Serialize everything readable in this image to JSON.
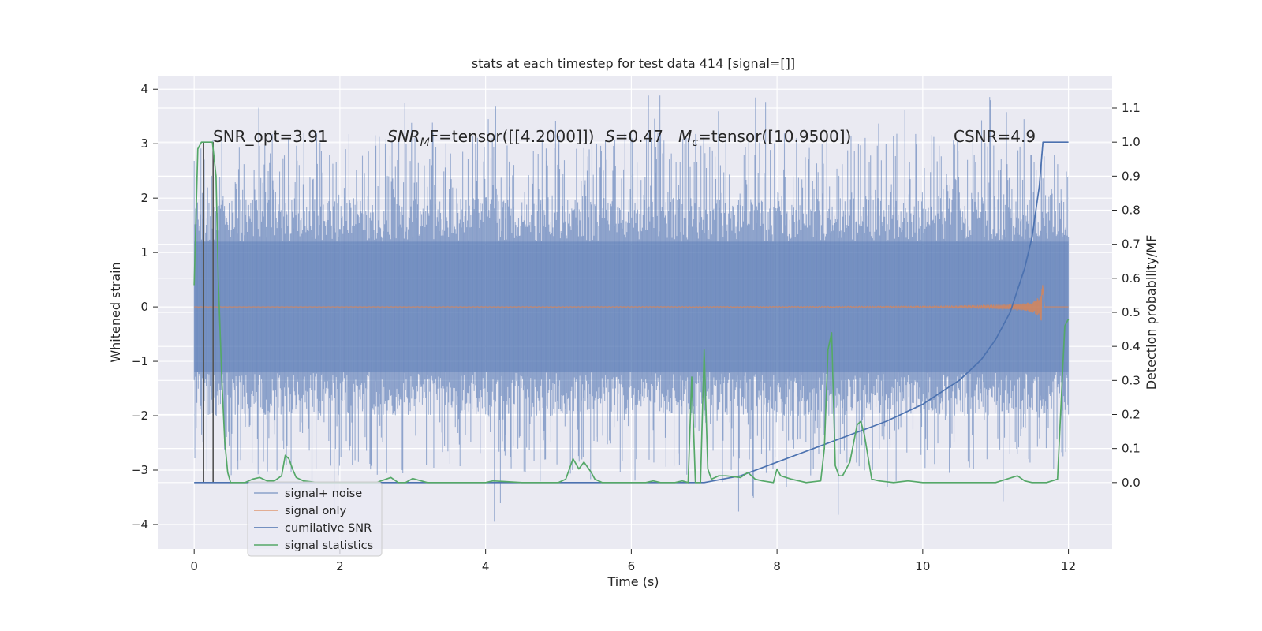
{
  "colors": {
    "axes_bg": "#eaeaf2",
    "grid": "#ffffff",
    "noise": "#4c72b0",
    "signal": "#dd8452",
    "csnr": "#4c72b0",
    "stats": "#55a868",
    "marker": "#555555"
  },
  "chart_data": {
    "type": "line",
    "title": "stats at each timestep for test data 414 [signal=[]]",
    "xlabel": "Time (s)",
    "ylabel": "Whitened strain",
    "ylabel_right": "Detection probability/MF",
    "xlim": [
      -0.5,
      12.6
    ],
    "ylim": [
      -4.45,
      4.25
    ],
    "ylim_right": [
      -0.195,
      1.195
    ],
    "x_ticks": [
      0,
      2,
      4,
      6,
      8,
      10,
      12
    ],
    "y_ticks": [
      -4,
      -3,
      -2,
      -1,
      0,
      1,
      2,
      3,
      4
    ],
    "y_ticks_right": [
      0.0,
      0.1,
      0.2,
      0.3,
      0.4,
      0.5,
      0.6,
      0.7,
      0.8,
      0.9,
      1.0,
      1.1
    ],
    "grid": true,
    "legend_position": "lower-left",
    "annotations": {
      "snr_opt": "SNR_opt=3.91",
      "snr_mf_symbol": "SNR",
      "snr_mf_sub": "M",
      "snr_mf_value": "F=tensor([[4.2000]])",
      "s_symbol": "S",
      "s_value": "=0.47",
      "mc_symbol": "M",
      "mc_sub": "c",
      "mc_value": "=tensor([10.9500])",
      "csnr": "CSNR=4.9"
    },
    "marker_lines_x": [
      0.13,
      0.26
    ],
    "series": [
      {
        "name": "signal+ noise",
        "axis": "left",
        "style": "whitened noise band, t=0 to 12 s",
        "t_start": 0,
        "t_end": 12,
        "band_core": 1.2,
        "spike_range": [
          -4.1,
          3.9
        ]
      },
      {
        "name": "signal only",
        "axis": "left",
        "style": "chirp, growing amplitude until merger",
        "t_start": 0,
        "t_merger": 11.65,
        "peak_amplitude": 0.47
      },
      {
        "name": "cumilative SNR",
        "axis": "right",
        "x": [
          0,
          7.0,
          7.5,
          8.0,
          8.5,
          9.0,
          9.5,
          10.0,
          10.5,
          10.8,
          11.0,
          11.2,
          11.4,
          11.5,
          11.6,
          11.65,
          12.0
        ],
        "y": [
          0.0,
          0.0,
          0.02,
          0.06,
          0.1,
          0.14,
          0.18,
          0.23,
          0.3,
          0.36,
          0.42,
          0.5,
          0.63,
          0.72,
          0.87,
          1.0,
          1.0
        ]
      },
      {
        "name": "signal statistics",
        "axis": "right",
        "x": [
          0.0,
          0.05,
          0.1,
          0.15,
          0.2,
          0.25,
          0.3,
          0.33,
          0.38,
          0.42,
          0.46,
          0.5,
          0.6,
          0.7,
          0.8,
          0.9,
          1.0,
          1.1,
          1.2,
          1.25,
          1.3,
          1.35,
          1.4,
          1.5,
          1.7,
          2.0,
          2.5,
          2.7,
          2.8,
          2.9,
          3.0,
          3.2,
          3.5,
          4.0,
          4.1,
          4.5,
          5.0,
          5.1,
          5.2,
          5.28,
          5.35,
          5.4,
          5.45,
          5.5,
          5.6,
          5.8,
          6.0,
          6.2,
          6.3,
          6.4,
          6.5,
          6.6,
          6.7,
          6.78,
          6.83,
          6.88,
          6.95,
          7.0,
          7.05,
          7.1,
          7.2,
          7.3,
          7.5,
          7.6,
          7.7,
          7.8,
          7.95,
          8.0,
          8.05,
          8.2,
          8.4,
          8.6,
          8.65,
          8.7,
          8.75,
          8.8,
          8.85,
          8.9,
          9.0,
          9.1,
          9.15,
          9.2,
          9.3,
          9.4,
          9.6,
          9.8,
          10.0,
          10.5,
          11.0,
          11.3,
          11.4,
          11.5,
          11.7,
          11.85,
          11.95,
          12.0
        ],
        "y": [
          0.58,
          0.98,
          1.0,
          1.0,
          1.0,
          1.0,
          0.9,
          0.6,
          0.3,
          0.12,
          0.03,
          0.0,
          0.0,
          0.0,
          0.01,
          0.015,
          0.005,
          0.005,
          0.02,
          0.08,
          0.07,
          0.04,
          0.015,
          0.005,
          0.0,
          0.0,
          0.0,
          0.015,
          0.0,
          0.0,
          0.012,
          0.0,
          0.0,
          0.0,
          0.005,
          0.0,
          0.0,
          0.01,
          0.07,
          0.04,
          0.06,
          0.045,
          0.03,
          0.01,
          0.0,
          0.0,
          0.0,
          0.0,
          0.005,
          0.0,
          0.0,
          0.0,
          0.005,
          0.0,
          0.31,
          0.0,
          0.0,
          0.39,
          0.04,
          0.01,
          0.02,
          0.02,
          0.015,
          0.03,
          0.01,
          0.005,
          0.0,
          0.04,
          0.02,
          0.01,
          0.0,
          0.005,
          0.1,
          0.39,
          0.44,
          0.05,
          0.02,
          0.02,
          0.06,
          0.17,
          0.18,
          0.14,
          0.01,
          0.005,
          0.0,
          0.005,
          0.0,
          0.0,
          0.0,
          0.02,
          0.005,
          0.0,
          0.0,
          0.01,
          0.46,
          0.48
        ]
      }
    ]
  }
}
